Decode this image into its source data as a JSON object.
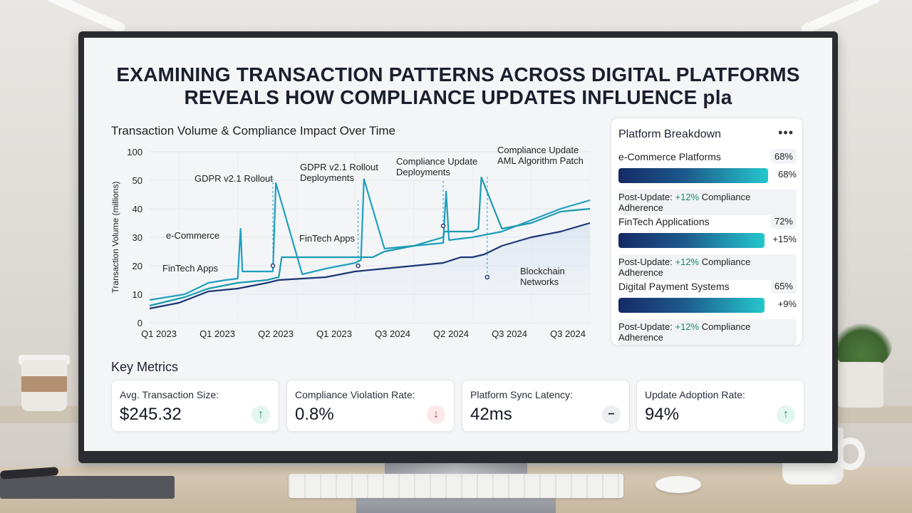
{
  "headline": {
    "line1": "EXAMINING TRANSACTION PATTERNS ACROSS DIGITAL PLATFORMS",
    "line2": "REVEALS HOW COMPLIANCE UPDATES INFLUENCE pla"
  },
  "chart_data": {
    "type": "line",
    "title": "Transaction Volume & Compliance Impact Over Time",
    "ylabel": "Transaction Volume (millions)",
    "xlabel": "",
    "y_ticks": [
      0,
      10,
      20,
      30,
      40,
      50,
      100
    ],
    "x_ticks": [
      "Q1 2023",
      "Q1 2023",
      "Q2 2023",
      "Q1 2023",
      "Q3 2024",
      "Q2 2024",
      "Q3 2024",
      "Q3 2024"
    ],
    "grid": true,
    "series": [
      {
        "name": "e-Commerce",
        "color": "#1f9fbf",
        "x": [
          0,
          0.6,
          1.0,
          1.3,
          1.5,
          1.55,
          1.58,
          2.0,
          2.1,
          2.15,
          2.6,
          3.0,
          3.5,
          3.6,
          3.65,
          4.0,
          4.5,
          5.0,
          5.05,
          5.1,
          5.5,
          6.0,
          6.5,
          7.0,
          7.5
        ],
        "y": [
          8,
          10,
          14,
          15,
          15.5,
          33,
          18,
          18,
          18,
          49,
          17,
          19,
          21,
          22,
          52,
          26,
          27,
          28,
          46,
          29,
          30,
          32,
          36,
          40,
          43
        ]
      },
      {
        "name": "FinTech Apps",
        "color": "#1a9ab0",
        "x": [
          0,
          0.6,
          1.0,
          1.5,
          2.0,
          2.2,
          2.25,
          2.8,
          3.0,
          3.5,
          3.8,
          4.0,
          4.5,
          5.0,
          5.02,
          5.5,
          5.6,
          5.65,
          6.0,
          6.5,
          7.0,
          7.5
        ],
        "y": [
          6,
          9,
          12,
          14,
          15,
          16,
          23,
          23,
          23,
          23,
          23,
          25,
          27,
          30,
          32,
          32,
          33,
          55,
          33,
          35,
          39,
          40
        ]
      },
      {
        "name": "Blockchain Networks",
        "color": "#1c3574",
        "x": [
          0,
          0.5,
          1.0,
          1.5,
          2.0,
          2.2,
          3.0,
          3.5,
          4.0,
          4.5,
          5.0,
          5.3,
          5.5,
          5.7,
          6.0,
          6.5,
          7.0,
          7.5
        ],
        "y": [
          5,
          7,
          11,
          12,
          14,
          15,
          16,
          18,
          19,
          20,
          21,
          23,
          23,
          24,
          27,
          30,
          32,
          35
        ]
      }
    ],
    "annotations": [
      {
        "text": "GDPR v2.1 Rollout",
        "x": 2.15
      },
      {
        "text": "e-Commerce",
        "x": 1.55
      },
      {
        "text": "FinTech Apps",
        "x": 1.3
      },
      {
        "text": "GDPR v2.1 Rollout Deployments",
        "x": 3.65
      },
      {
        "text": "FinTech Apps",
        "x": 3.5
      },
      {
        "text": "Compliance Update Deployments",
        "x": 5.05
      },
      {
        "text": "Compliance Update AML Algorithm Patch",
        "x": 5.65
      },
      {
        "text": "Blockchain Networks",
        "x": 6.0
      }
    ]
  },
  "panel": {
    "title": "Platform Breakdown",
    "menu_icon": "more-horizontal-icon",
    "items": [
      {
        "label": "e-Commerce Platforms",
        "pct": "68%",
        "bar_fraction": 0.84,
        "bar_value": "68%",
        "post_prefix": "Post-Update: ",
        "post_change": "+12%",
        "post_suffix": " Compliance Adherence"
      },
      {
        "label": "FinTech Applications",
        "pct": "72%",
        "bar_fraction": 0.82,
        "bar_value": "+15%",
        "post_prefix": "Post-Update: ",
        "post_change": "+12%",
        "post_suffix": " Compliance Adherence"
      },
      {
        "label": "Digital Payment Systems",
        "pct": "65%",
        "bar_fraction": 0.82,
        "bar_value": "+9%",
        "post_prefix": "Post-Update: ",
        "post_change": "+12%",
        "post_suffix": " Compliance Adherence"
      }
    ]
  },
  "metrics": {
    "title": "Key Metrics",
    "cards": [
      {
        "label": "Avg. Transaction Size:",
        "value": "$245.32",
        "indicator": "arrow-up-icon",
        "glyph": "↑"
      },
      {
        "label": "Compliance Violation Rate:",
        "value": "0.8%",
        "indicator": "arrow-down-icon",
        "glyph": "↓"
      },
      {
        "label": "Platform Sync Latency:",
        "value": "42ms",
        "indicator": "minus-icon",
        "glyph": "−"
      },
      {
        "label": "Update Adoption Rate:",
        "value": "94%",
        "indicator": "arrow-up-icon",
        "glyph": "↑"
      }
    ]
  }
}
